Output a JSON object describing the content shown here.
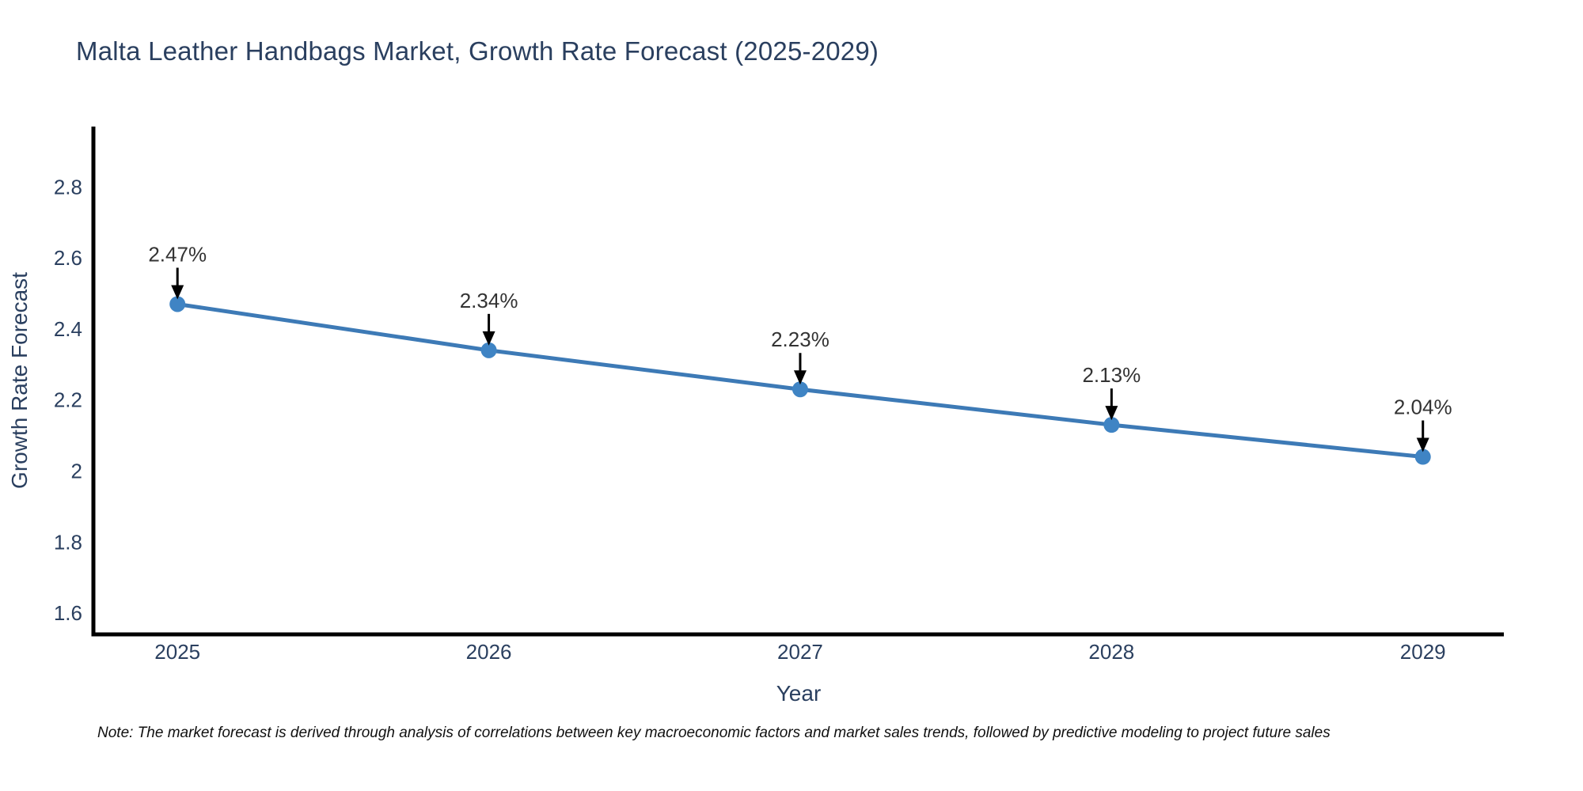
{
  "page": {
    "title": "Malta Leather Handbags Market, Growth Rate Forecast (2025-2029)",
    "note": "Note: The market forecast is derived through analysis of correlations between key macroeconomic factors and market sales trends, followed by predictive modeling to project future sales"
  },
  "colors": {
    "title_text": "#2a3f5f",
    "tick_text": "#2a3f5f",
    "axis_title_text": "#2a3f5f",
    "annotation_text": "#333333",
    "arrow": "#000000",
    "axis_line": "#000000",
    "series_line": "#3d7ab6",
    "marker_fill": "#3f84c4",
    "note_text": "#101010",
    "background": "#ffffff"
  },
  "chart_data": {
    "type": "line",
    "title": "Malta Leather Handbags Market, Growth Rate Forecast (2025-2029)",
    "xlabel": "Year",
    "ylabel": "Growth Rate Forecast",
    "x": [
      2025,
      2026,
      2027,
      2028,
      2029
    ],
    "values": [
      2.47,
      2.34,
      2.23,
      2.13,
      2.04
    ],
    "point_labels": [
      "2.47%",
      "2.34%",
      "2.23%",
      "2.13%",
      "2.04%"
    ],
    "x_tick_labels": [
      "2025",
      "2026",
      "2027",
      "2028",
      "2029"
    ],
    "y_ticks": [
      1.6,
      1.8,
      2.0,
      2.2,
      2.4,
      2.6,
      2.8
    ],
    "y_tick_labels": [
      "1.6",
      "1.8",
      "2",
      "2.2",
      "2.4",
      "2.6",
      "2.8"
    ],
    "xlim": [
      2024.73,
      2029.26
    ],
    "ylim": [
      1.54,
      2.97
    ],
    "grid": false,
    "legend": "none",
    "marker": "circle",
    "annotation_arrows": true
  }
}
